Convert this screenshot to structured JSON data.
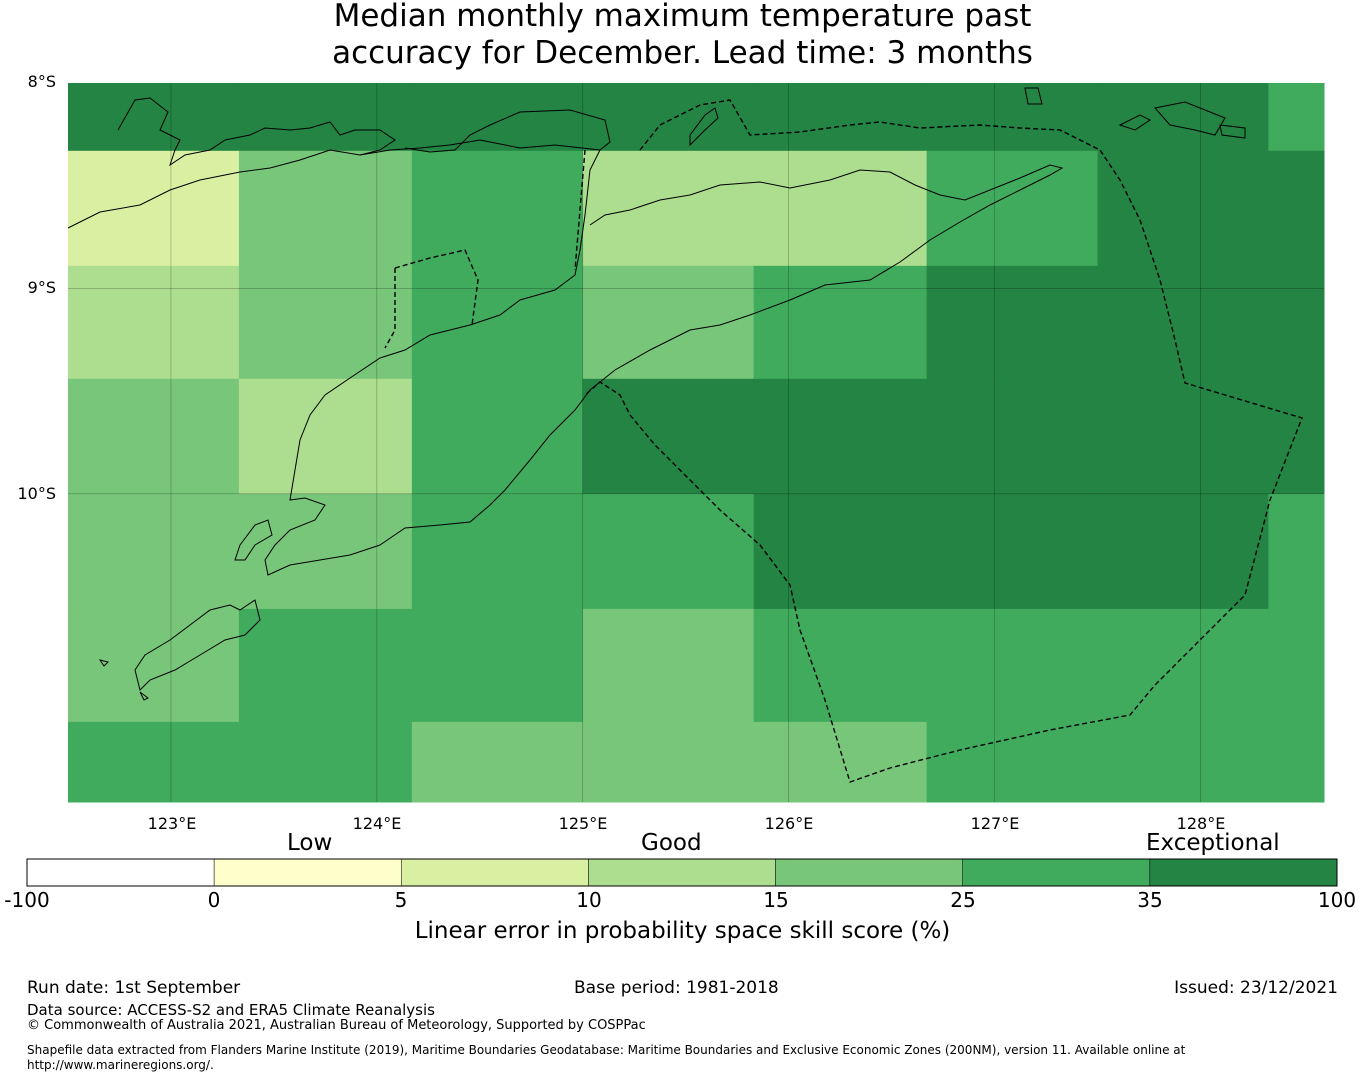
{
  "title": {
    "line1": "Median monthly maximum temperature past",
    "line2": "accuracy for December. Lead time: 3 months"
  },
  "map": {
    "lat_labels": [
      "8°S",
      "9°S",
      "10°S"
    ],
    "lon_labels": [
      "123°E",
      "124°E",
      "125°E",
      "126°E",
      "127°E",
      "128°E"
    ],
    "extent": {
      "lon": [
        122.5,
        128.6
      ],
      "lat": [
        -8.0,
        -11.5
      ]
    }
  },
  "colorbar": {
    "categories": [
      "Low",
      "Good",
      "Exceptional"
    ],
    "ticks": [
      "-100",
      "0",
      "5",
      "10",
      "15",
      "25",
      "35",
      "100"
    ],
    "colors": [
      "#ffffff",
      "#ffffcc",
      "#d9f0a3",
      "#addd8e",
      "#78c679",
      "#41ab5d",
      "#238443"
    ],
    "label": "Linear error in probability space skill score (%)"
  },
  "grid_cells": {
    "row_lats": [
      -8.0,
      -8.33,
      -8.89,
      -9.44,
      -10.0,
      -10.56,
      -11.11,
      -11.5
    ],
    "col_lons": [
      122.5,
      123.33,
      124.17,
      125.0,
      125.83,
      126.67,
      127.5,
      128.33,
      128.6
    ],
    "class_index_rows": [
      [
        6,
        6,
        6,
        6,
        6,
        6,
        6,
        5
      ],
      [
        2,
        4,
        5,
        3,
        3,
        5,
        6,
        6
      ],
      [
        3,
        4,
        5,
        4,
        5,
        6,
        6,
        6
      ],
      [
        4,
        3,
        5,
        6,
        6,
        6,
        6,
        6
      ],
      [
        4,
        4,
        5,
        5,
        6,
        6,
        6,
        5
      ],
      [
        4,
        5,
        5,
        4,
        5,
        5,
        5,
        5
      ],
      [
        5,
        5,
        4,
        4,
        4,
        5,
        5,
        5
      ]
    ]
  },
  "footer": {
    "run_date": "Run date: 1st September",
    "base_period": "Base period: 1981-2018",
    "issued": "Issued: 23/12/2021",
    "data_source": "Data source: ACCESS-S2 and ERA5 Climate Reanalysis",
    "copyright": "© Commonwealth of Australia 2021, Australian Bureau of Meteorology, Supported by COSPPac",
    "shapefile_line1": "Shapefile data extracted from Flanders Marine Institute (2019), Maritime Boundaries Geodatabase: Maritime Boundaries and Exclusive Economic Zones (200NM), version 11. Available online at",
    "shapefile_line2": "http://www.marineregions.org/."
  }
}
